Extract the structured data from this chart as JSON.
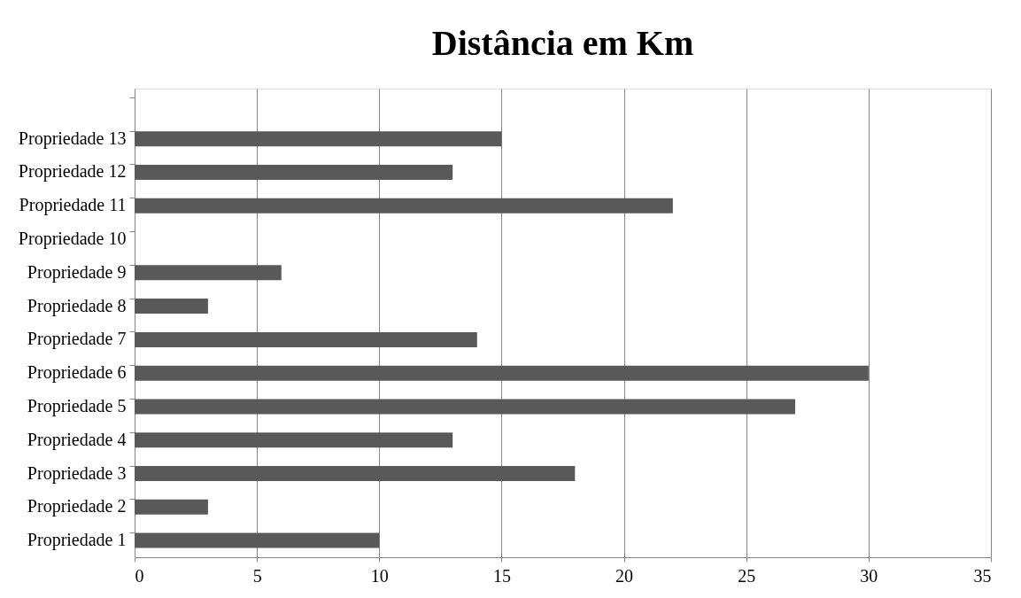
{
  "chart_data": {
    "type": "bar",
    "title": "Distância em Km",
    "orientation": "horizontal",
    "categories": [
      null,
      "Propriedade 13",
      "Propriedade 12",
      "Propriedade 11",
      "Propriedade 10",
      "Propriedade 9",
      "Propriedade 8",
      "Propriedade 7",
      "Propriedade 6",
      "Propriedade 5",
      "Propriedade 4",
      "Propriedade 3",
      "Propriedade 2",
      "Propriedade 1"
    ],
    "values": [
      null,
      15,
      13,
      22,
      null,
      6,
      3,
      14,
      30,
      27,
      13,
      18,
      3,
      10
    ],
    "color": "#595959",
    "xlim": [
      0,
      35
    ],
    "xticks": [
      0,
      5,
      10,
      15,
      20,
      25,
      30,
      35
    ],
    "grid": "x"
  }
}
